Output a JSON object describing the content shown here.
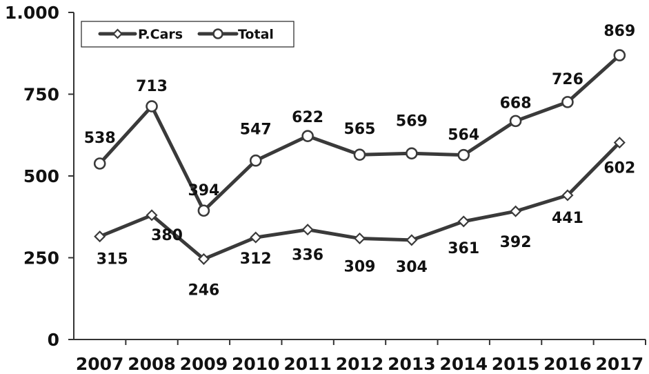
{
  "chart_data": {
    "type": "line",
    "categories": [
      "2007",
      "2008",
      "2009",
      "2010",
      "2011",
      "2012",
      "2013",
      "2014",
      "2015",
      "2016",
      "2017"
    ],
    "series": [
      {
        "name": "P.Cars",
        "marker": "diamond",
        "values": [
          315,
          380,
          246,
          312,
          336,
          309,
          304,
          361,
          392,
          441,
          602
        ]
      },
      {
        "name": "Total",
        "marker": "circle",
        "values": [
          538,
          713,
          394,
          547,
          622,
          565,
          569,
          564,
          668,
          726,
          869
        ]
      }
    ],
    "y_ticks": [
      {
        "value": 0,
        "label": "0"
      },
      {
        "value": 250,
        "label": "250"
      },
      {
        "value": 500,
        "label": "500"
      },
      {
        "value": 750,
        "label": "750"
      },
      {
        "value": 1000,
        "label": "1.000"
      }
    ],
    "ylim": [
      0,
      1000
    ],
    "grid": false,
    "legend_position": "top-left",
    "line_color": "#3a3a3a",
    "marker_fill": "#ffffff"
  }
}
